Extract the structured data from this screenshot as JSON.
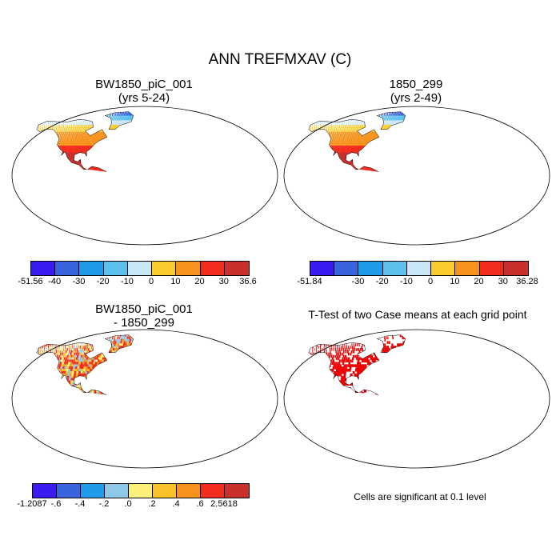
{
  "title": "ANN TREFMXAV (C)",
  "panels": [
    {
      "id": "case",
      "title_lines": [
        "BW1850_piC_001",
        "(yrs 5-24)"
      ],
      "colorbar": {
        "colors": [
          "#3b1cf0",
          "#3a63e0",
          "#1f9be9",
          "#5cc0ec",
          "#c8e6f4",
          "#fccc2e",
          "#f7931d",
          "#f22d1d",
          "#c8302b"
        ],
        "labels": [
          "-51.56",
          "-40",
          "-30",
          "-20",
          "-10",
          "0",
          "10",
          "20",
          "30",
          "36.6"
        ]
      }
    },
    {
      "id": "control",
      "title_lines": [
        "1850_299",
        "(yrs 2-49)"
      ],
      "colorbar": {
        "colors": [
          "#3b1cf0",
          "#3a63e0",
          "#1f9be9",
          "#5cc0ec",
          "#c8e6f4",
          "#fccc2e",
          "#f7931d",
          "#f22d1d",
          "#c8302b"
        ],
        "labels": [
          "-51.84",
          "",
          "-30",
          "-20",
          "-10",
          "0",
          "10",
          "20",
          "30",
          "36.28"
        ]
      }
    },
    {
      "id": "diff",
      "title_lines": [
        "BW1850_piC_001",
        "- 1850_299"
      ],
      "colorbar": {
        "colors": [
          "#3b1cf0",
          "#3a63e0",
          "#1f9be9",
          "#8ec9ea",
          "#fdf07a",
          "#fbc12a",
          "#f7931d",
          "#f22d1d",
          "#c8302b"
        ],
        "labels": [
          "-1.2087",
          "-.6",
          "-.4",
          "-.2",
          ".0",
          ".2",
          ".4",
          ".6",
          "2.5618"
        ]
      }
    },
    {
      "id": "ttest",
      "title_lines": [
        "T-Test of two Case means at each grid point"
      ],
      "footnote": "Cells are significant at 0.1 level"
    }
  ],
  "colors": {
    "ocean": "#ffffff",
    "signif": "#ee0000"
  }
}
